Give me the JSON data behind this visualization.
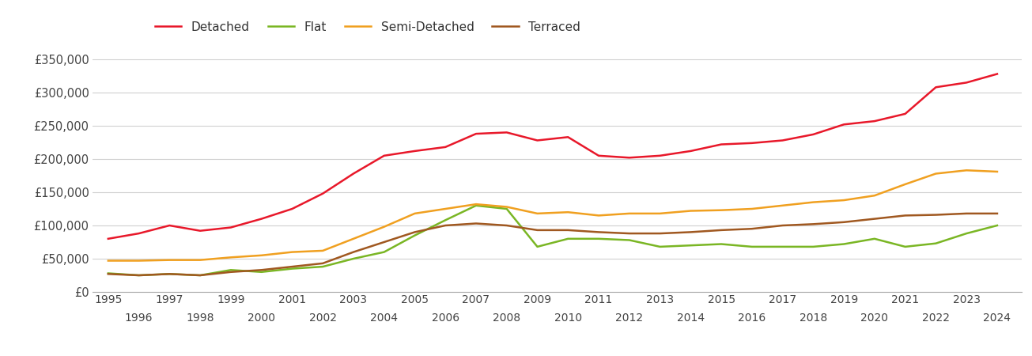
{
  "years": [
    1995,
    1996,
    1997,
    1998,
    1999,
    2000,
    2001,
    2002,
    2003,
    2004,
    2005,
    2006,
    2007,
    2008,
    2009,
    2010,
    2011,
    2012,
    2013,
    2014,
    2015,
    2016,
    2017,
    2018,
    2019,
    2020,
    2021,
    2022,
    2023,
    2024
  ],
  "detached": [
    80000,
    88000,
    100000,
    92000,
    97000,
    110000,
    125000,
    148000,
    178000,
    205000,
    212000,
    218000,
    238000,
    240000,
    228000,
    233000,
    205000,
    202000,
    205000,
    212000,
    222000,
    224000,
    228000,
    237000,
    252000,
    257000,
    268000,
    308000,
    315000,
    328000
  ],
  "flat": [
    28000,
    25000,
    27000,
    25000,
    33000,
    30000,
    35000,
    38000,
    50000,
    60000,
    85000,
    108000,
    130000,
    125000,
    68000,
    80000,
    80000,
    78000,
    68000,
    70000,
    72000,
    68000,
    68000,
    68000,
    72000,
    80000,
    68000,
    73000,
    88000,
    100000
  ],
  "semi_detached": [
    47000,
    47000,
    48000,
    48000,
    52000,
    55000,
    60000,
    62000,
    80000,
    98000,
    118000,
    125000,
    132000,
    128000,
    118000,
    120000,
    115000,
    118000,
    118000,
    122000,
    123000,
    125000,
    130000,
    135000,
    138000,
    145000,
    162000,
    178000,
    183000,
    181000
  ],
  "terraced": [
    27000,
    25000,
    27000,
    25000,
    30000,
    33000,
    38000,
    43000,
    60000,
    75000,
    90000,
    100000,
    103000,
    100000,
    93000,
    93000,
    90000,
    88000,
    88000,
    90000,
    93000,
    95000,
    100000,
    102000,
    105000,
    110000,
    115000,
    116000,
    118000,
    118000
  ],
  "series_colors": {
    "Detached": "#e8182a",
    "Flat": "#7ab624",
    "Semi-Detached": "#f0a020",
    "Terraced": "#a05820"
  },
  "ylim": [
    0,
    375000
  ],
  "yticks": [
    0,
    50000,
    100000,
    150000,
    200000,
    250000,
    300000,
    350000
  ],
  "ytick_labels": [
    "£0",
    "£50,000",
    "£100,000",
    "£150,000",
    "£200,000",
    "£250,000",
    "£300,000",
    "£350,000"
  ],
  "odd_xticks": [
    1995,
    1997,
    1999,
    2001,
    2003,
    2005,
    2007,
    2009,
    2011,
    2013,
    2015,
    2017,
    2019,
    2021,
    2023
  ],
  "even_xticks": [
    1996,
    1998,
    2000,
    2002,
    2004,
    2006,
    2008,
    2010,
    2012,
    2014,
    2016,
    2018,
    2020,
    2022,
    2024
  ],
  "background_color": "#ffffff",
  "grid_color": "#d0d0d0",
  "linewidth": 1.8
}
